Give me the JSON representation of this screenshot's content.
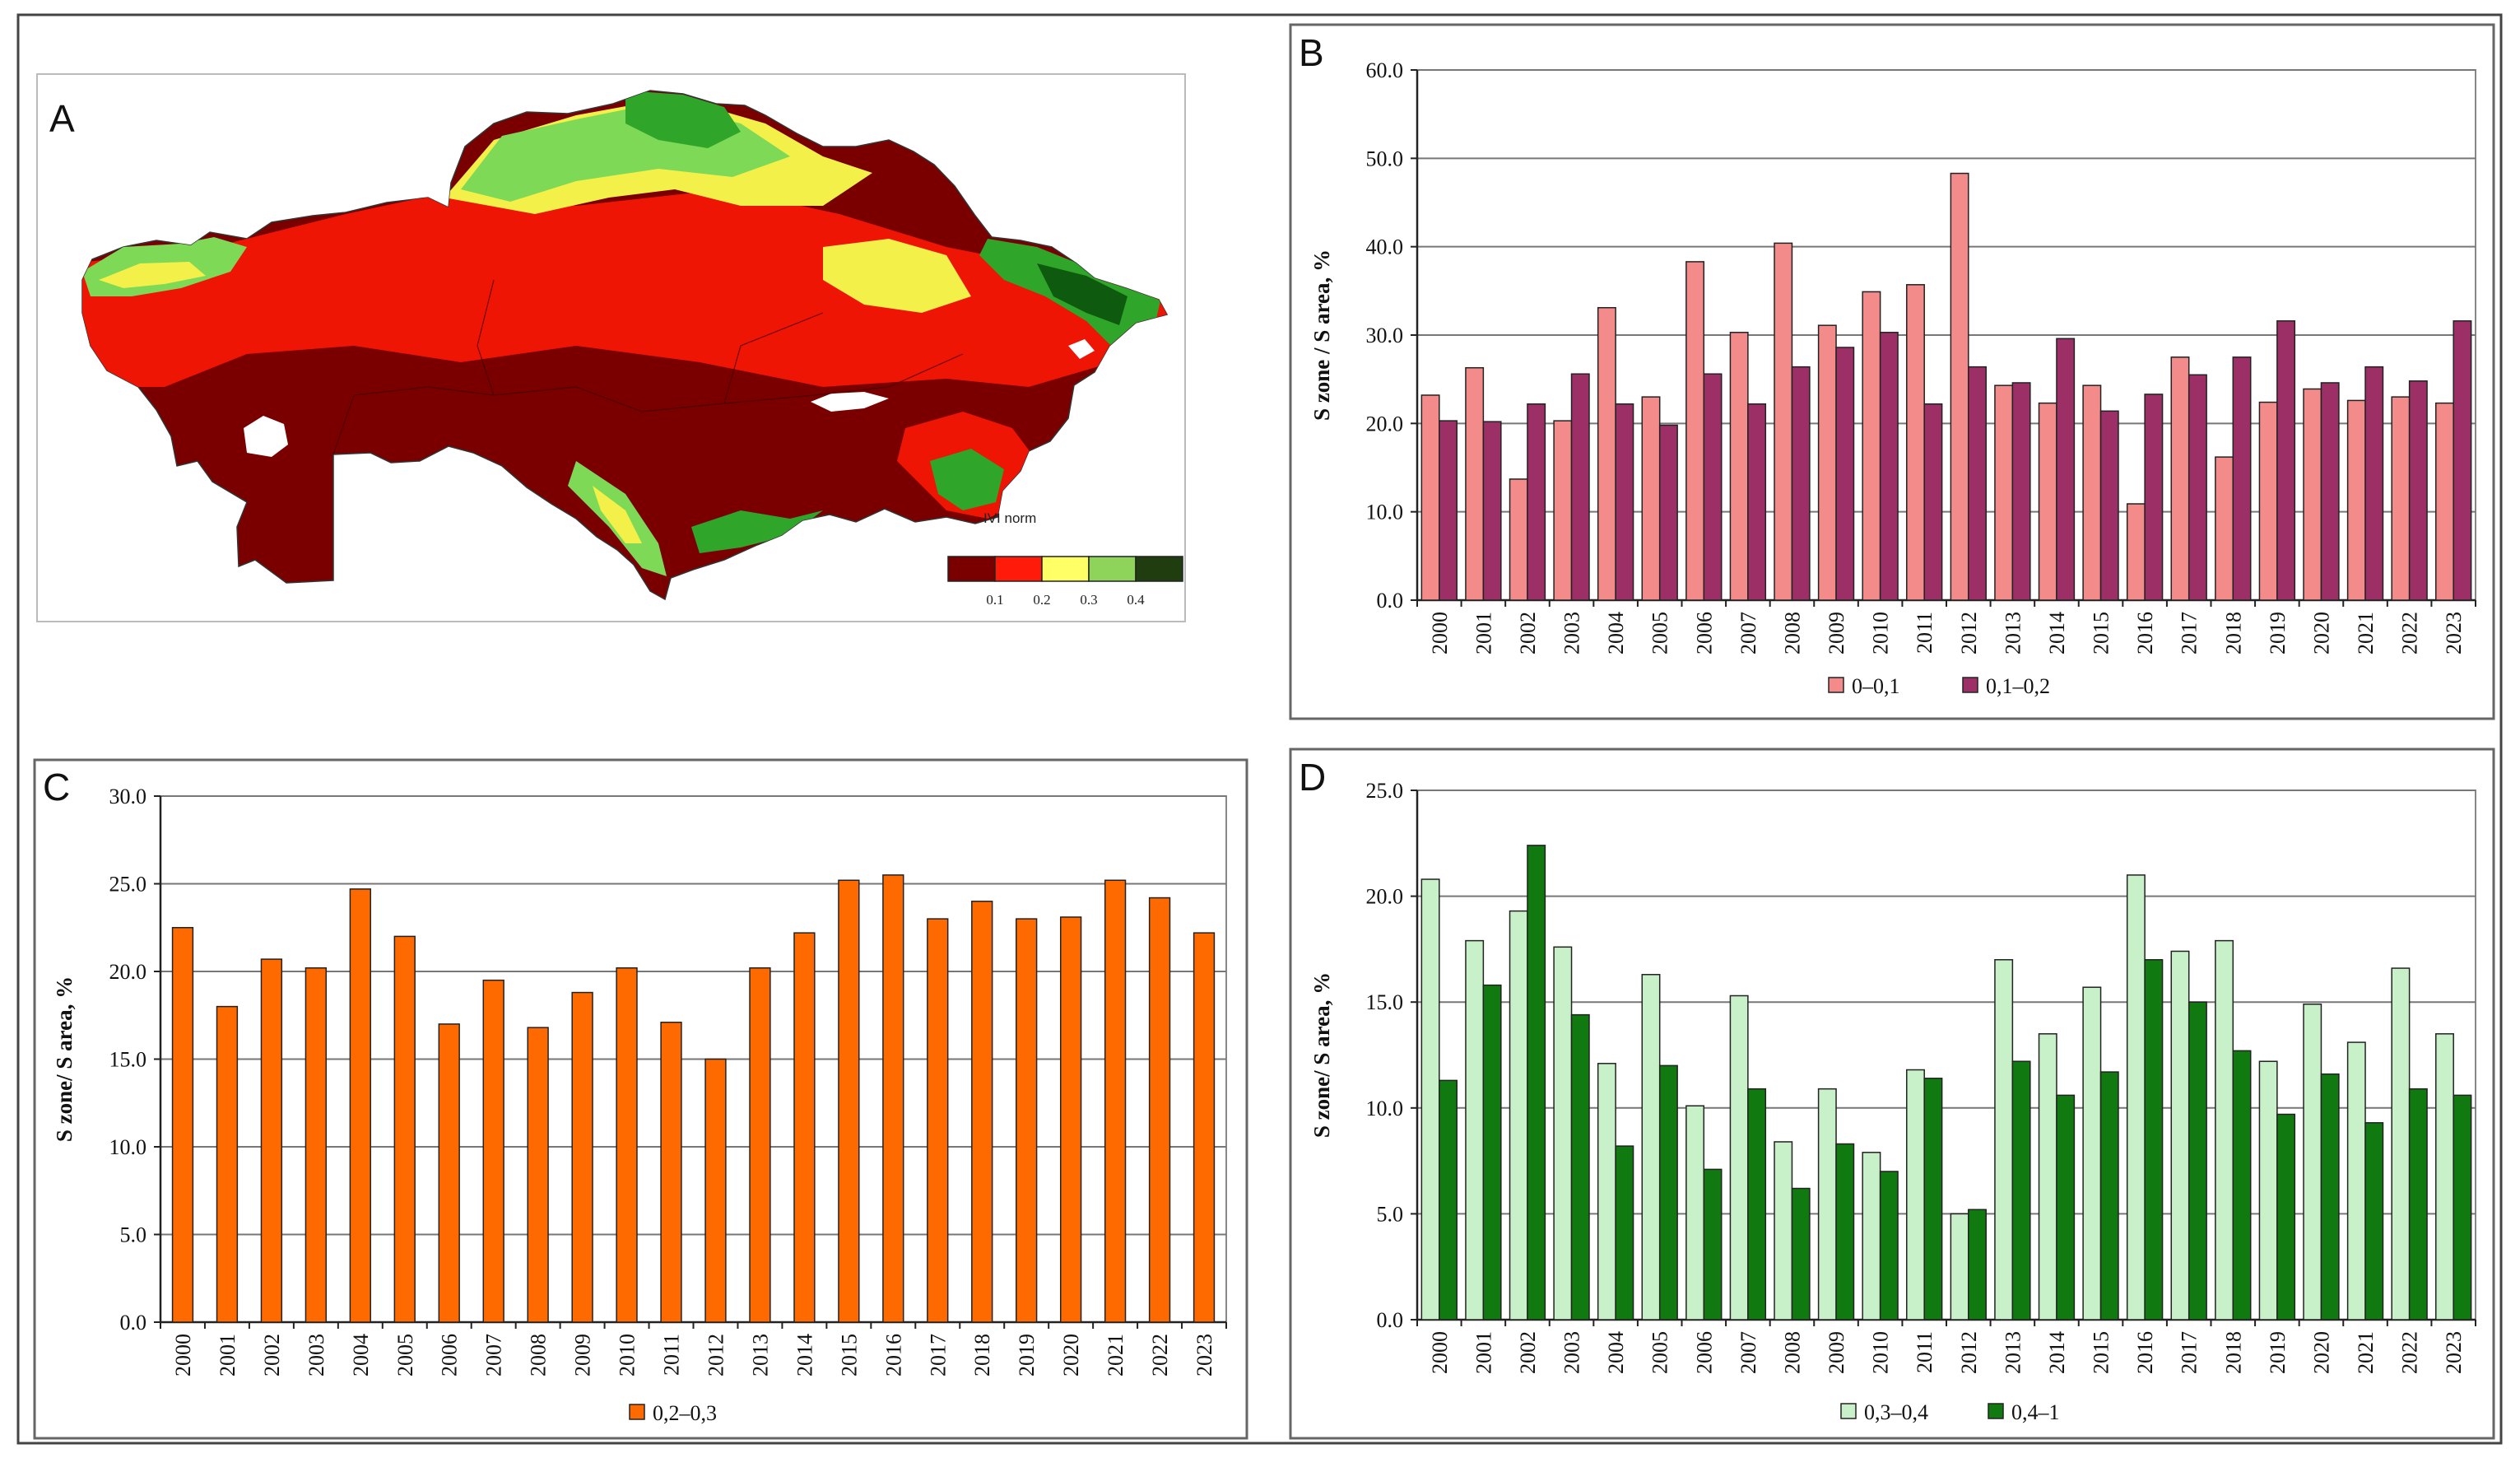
{
  "figure": {
    "panel_letters": {
      "a": "A",
      "b": "B",
      "c": "C",
      "d": "D"
    }
  },
  "map": {
    "legend_title": "IVI norm",
    "legend_colors": [
      "#7a0000",
      "#ff1a0a",
      "#ffff66",
      "#8fd45a",
      "#1f3d0f"
    ],
    "legend_ticks": [
      "0.1",
      "0.2",
      "0.3",
      "0.4"
    ],
    "colors": {
      "darkred": "#7a0000",
      "red": "#ee1505",
      "yellow": "#f3f04a",
      "lightgreen": "#7ed957",
      "green": "#2fa52a",
      "darkgreen": "#0e5a0e"
    }
  },
  "chart_data": [
    {
      "id": "B",
      "type": "bar",
      "title": "",
      "xlabel": "",
      "ylabel": "S zone / S area, %",
      "ylim": [
        0,
        60
      ],
      "yticks": [
        0,
        10,
        20,
        30,
        40,
        50,
        60
      ],
      "ytick_labels": [
        "0.0",
        "10.0",
        "20.0",
        "30.0",
        "40.0",
        "50.0",
        "60.0"
      ],
      "grid": true,
      "legend_position": "bottom",
      "categories": [
        "2000",
        "2001",
        "2002",
        "2003",
        "2004",
        "2005",
        "2006",
        "2007",
        "2008",
        "2009",
        "2010",
        "2011",
        "2012",
        "2013",
        "2014",
        "2015",
        "2016",
        "2017",
        "2018",
        "2019",
        "2020",
        "2021",
        "2022",
        "2023"
      ],
      "series": [
        {
          "name": "0–0,1",
          "color": "#f48b8b",
          "values": [
            23.2,
            26.3,
            13.7,
            20.3,
            33.1,
            23.0,
            38.3,
            30.3,
            40.4,
            31.1,
            34.9,
            35.7,
            48.3,
            24.3,
            22.3,
            24.3,
            10.9,
            27.5,
            16.2,
            22.4,
            23.9,
            22.6,
            23.0,
            22.3
          ]
        },
        {
          "name": "0,1–0,2",
          "color": "#9c2f66",
          "values": [
            20.3,
            20.2,
            22.2,
            25.6,
            22.2,
            19.8,
            25.6,
            22.2,
            26.4,
            28.6,
            30.3,
            22.2,
            26.4,
            24.6,
            29.6,
            21.4,
            23.3,
            25.5,
            27.5,
            31.6,
            24.6,
            26.4,
            24.8,
            31.6
          ]
        }
      ]
    },
    {
      "id": "C",
      "type": "bar",
      "title": "",
      "xlabel": "",
      "ylabel": "S zone/ S area, %",
      "ylim": [
        0,
        30
      ],
      "yticks": [
        0,
        5,
        10,
        15,
        20,
        25,
        30
      ],
      "ytick_labels": [
        "0.0",
        "5.0",
        "10.0",
        "15.0",
        "20.0",
        "25.0",
        "30.0"
      ],
      "grid": true,
      "legend_position": "bottom",
      "categories": [
        "2000",
        "2001",
        "2002",
        "2003",
        "2004",
        "2005",
        "2006",
        "2007",
        "2008",
        "2009",
        "2010",
        "2011",
        "2012",
        "2013",
        "2014",
        "2015",
        "2016",
        "2017",
        "2018",
        "2019",
        "2020",
        "2021",
        "2022",
        "2023"
      ],
      "series": [
        {
          "name": "0,2–0,3",
          "color": "#ff6a00",
          "values": [
            22.5,
            18.0,
            20.7,
            20.2,
            24.7,
            22.0,
            17.0,
            19.5,
            16.8,
            18.8,
            20.2,
            17.1,
            15.0,
            20.2,
            22.2,
            25.2,
            25.5,
            23.0,
            24.0,
            23.0,
            23.1,
            25.2,
            24.2,
            22.2
          ]
        }
      ]
    },
    {
      "id": "D",
      "type": "bar",
      "title": "",
      "xlabel": "",
      "ylabel": "S zone/ S area, %",
      "ylim": [
        0,
        25
      ],
      "yticks": [
        0,
        5,
        10,
        15,
        20,
        25
      ],
      "ytick_labels": [
        "0.0",
        "5.0",
        "10.0",
        "15.0",
        "20.0",
        "25.0"
      ],
      "grid": true,
      "legend_position": "bottom",
      "categories": [
        "2000",
        "2001",
        "2002",
        "2003",
        "2004",
        "2005",
        "2006",
        "2007",
        "2008",
        "2009",
        "2010",
        "2011",
        "2012",
        "2013",
        "2014",
        "2015",
        "2016",
        "2017",
        "2018",
        "2019",
        "2020",
        "2021",
        "2022",
        "2023"
      ],
      "series": [
        {
          "name": "0,3–0,4",
          "color": "#c9f1c9",
          "values": [
            20.8,
            17.9,
            19.3,
            17.6,
            12.1,
            16.3,
            10.1,
            15.3,
            8.4,
            10.9,
            7.9,
            11.8,
            5.0,
            17.0,
            13.5,
            15.7,
            21.0,
            17.4,
            17.9,
            12.2,
            14.9,
            13.1,
            16.6,
            13.5
          ]
        },
        {
          "name": "0,4–1",
          "color": "#107a10",
          "values": [
            11.3,
            15.8,
            22.4,
            14.4,
            8.2,
            12.0,
            7.1,
            10.9,
            6.2,
            8.3,
            7.0,
            11.4,
            5.2,
            12.2,
            10.6,
            11.7,
            17.0,
            15.0,
            12.7,
            9.7,
            11.6,
            9.3,
            10.9,
            10.6
          ]
        }
      ]
    }
  ]
}
